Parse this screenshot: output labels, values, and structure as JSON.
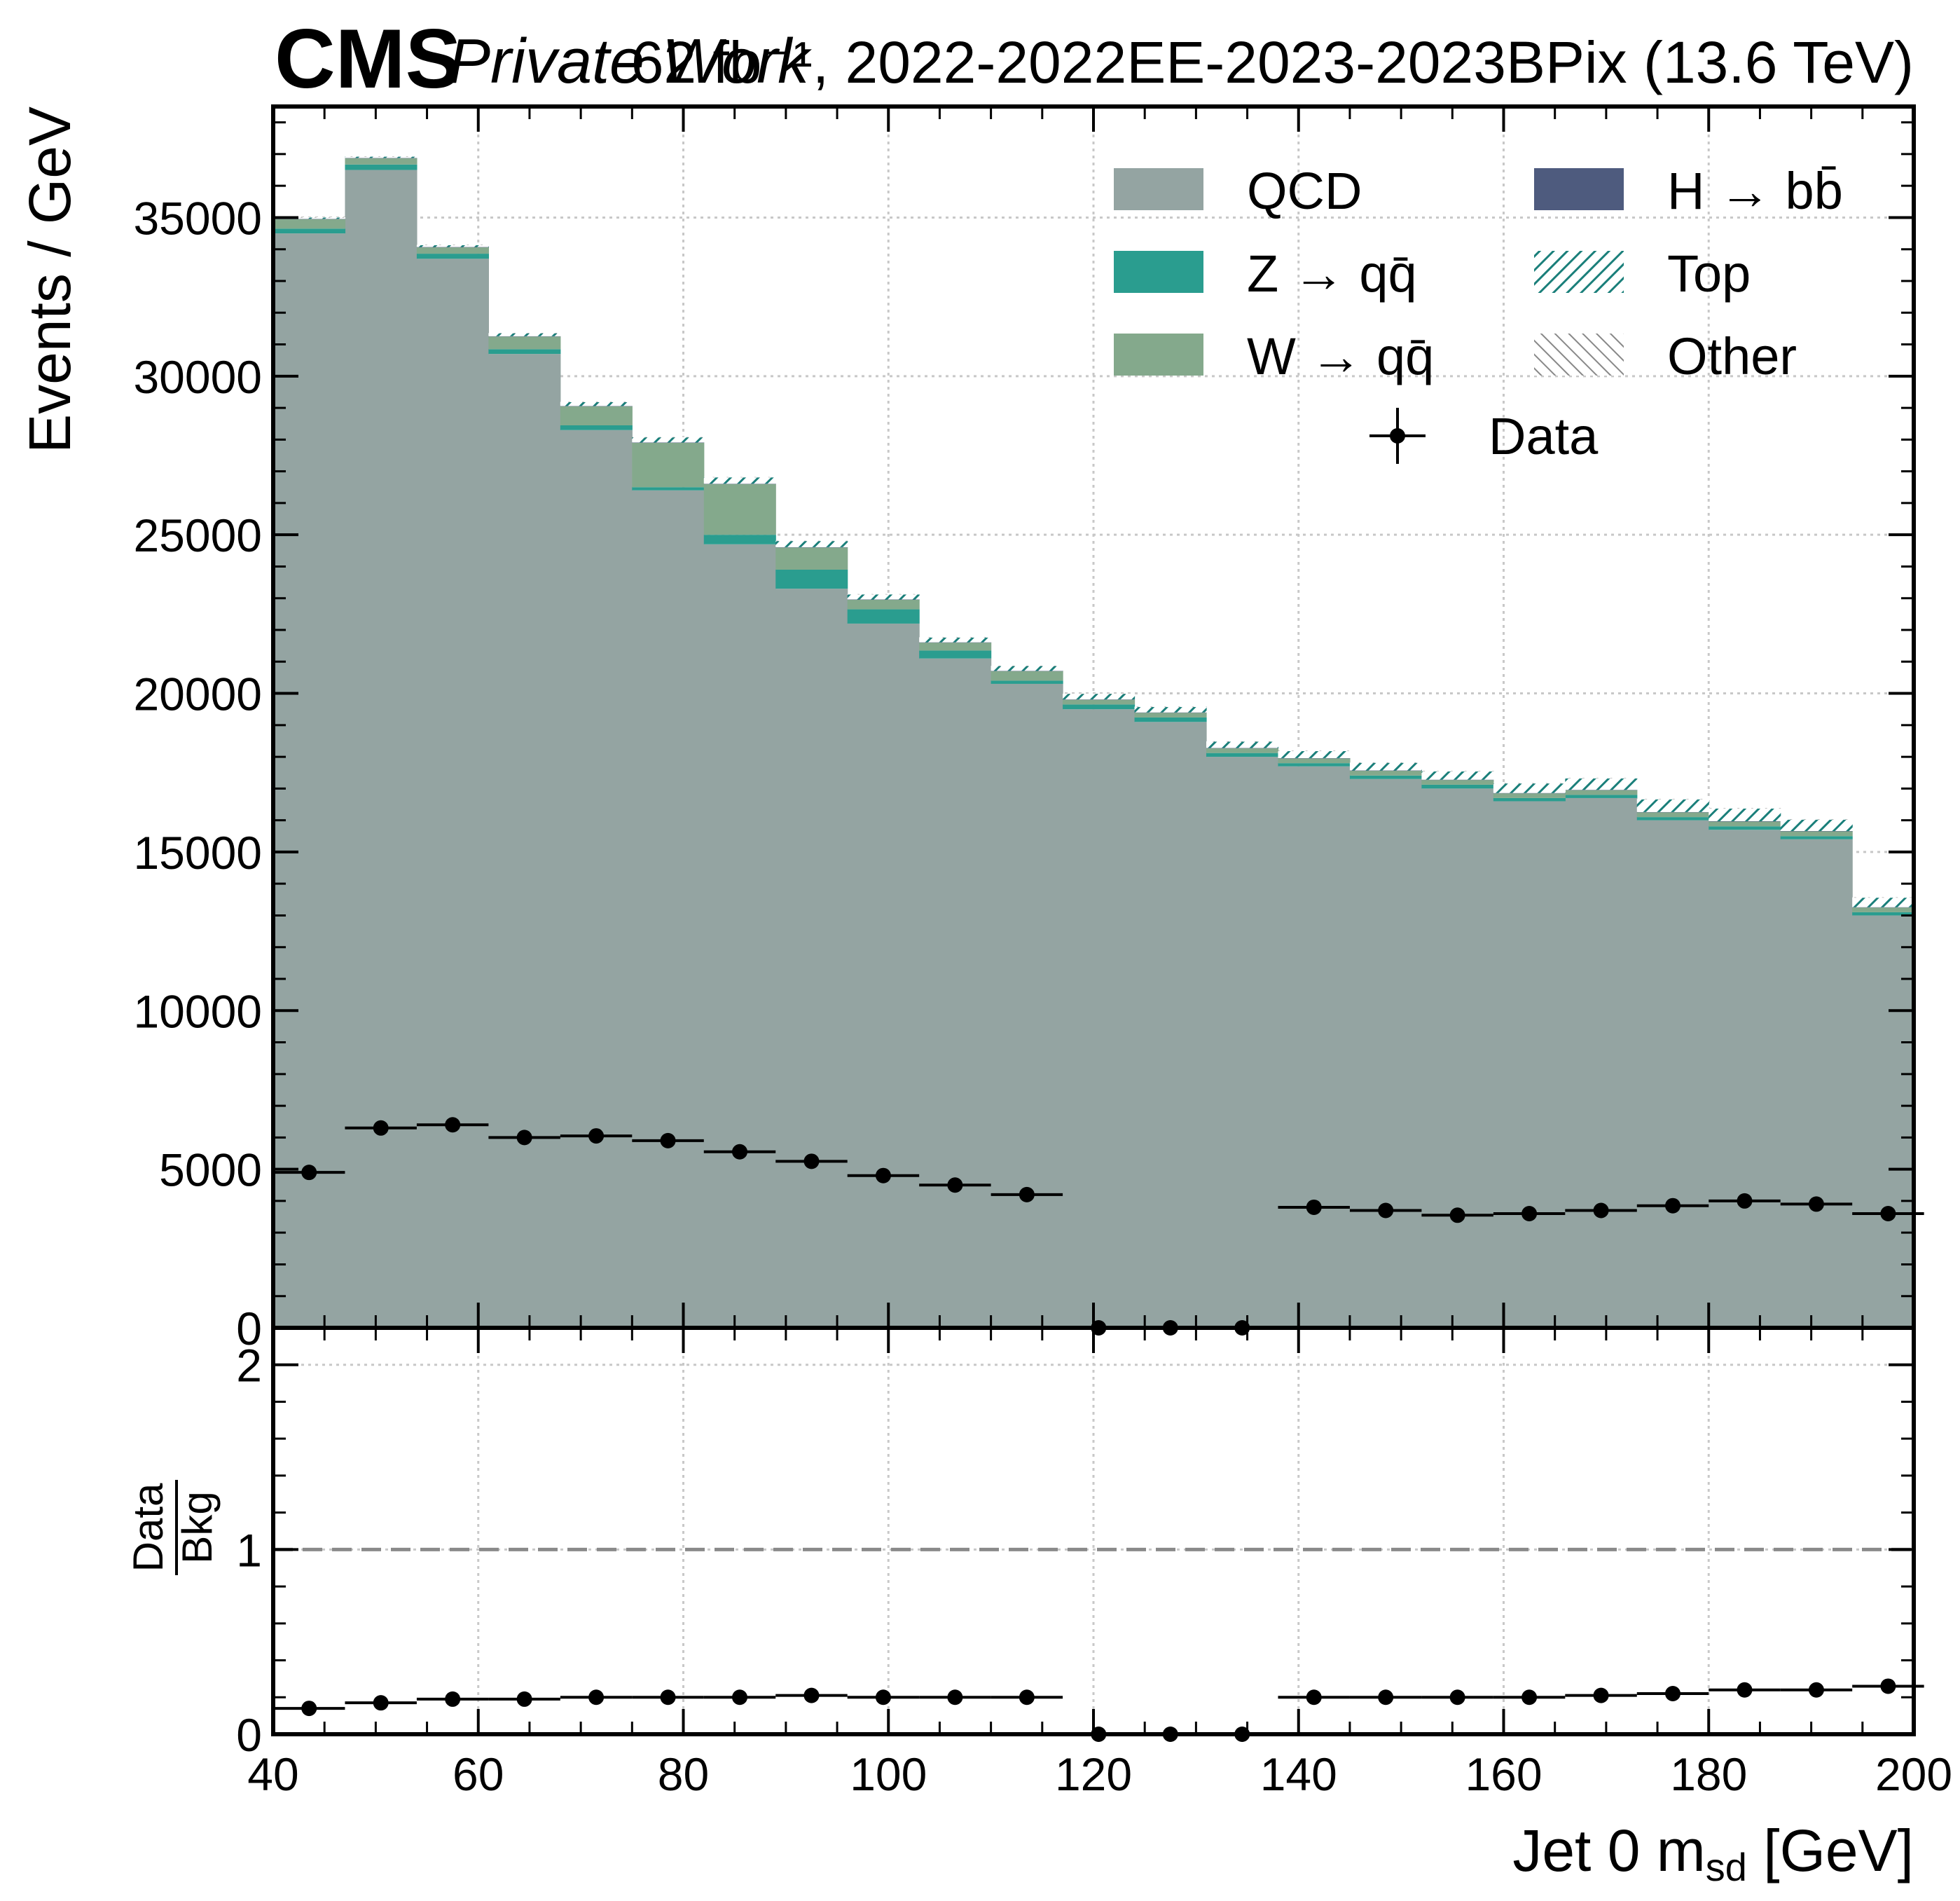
{
  "header": {
    "experiment": "CMS",
    "status": "Private Work",
    "lumi_text": "62 fb⁻¹, 2022-2022EE-2023-2023BPix (13.6 TeV)"
  },
  "colors": {
    "qcd": "#94a4a2",
    "zqq": "#2a9d8f",
    "wqq": "#84a98c",
    "hbb": "#4e5b7e",
    "top": "#1a7f7a",
    "other": "#888888",
    "data": "#000000",
    "ratio_line": "#8a8a8a"
  },
  "chart_data": [
    {
      "type": "bar",
      "subtype": "stacked-histogram",
      "ylabel": "Events / GeV",
      "xlim": [
        40,
        200
      ],
      "ylim": [
        0,
        38500
      ],
      "yticks": [
        0,
        5000,
        10000,
        15000,
        20000,
        25000,
        30000,
        35000
      ],
      "grid": true,
      "legend_position": "top-right",
      "bin_edges": [
        40,
        47,
        54,
        61,
        68,
        75,
        82,
        89,
        96,
        103,
        110,
        117,
        124,
        131,
        138,
        145,
        152,
        159,
        166,
        173,
        180,
        187,
        194,
        201
      ],
      "series": [
        {
          "name": "QCD",
          "color_key": "qcd",
          "values": [
            34500,
            36500,
            33700,
            30700,
            28300,
            26400,
            24700,
            23300,
            22200,
            21100,
            20300,
            19500,
            19100,
            18000,
            17700,
            17300,
            17000,
            16600,
            16700,
            16000,
            15700,
            15400,
            13000
          ]
        },
        {
          "name": "Z → qq̄",
          "color_key": "zqq",
          "values": [
            150,
            170,
            160,
            150,
            150,
            100,
            300,
            600,
            450,
            250,
            100,
            150,
            140,
            120,
            100,
            110,
            120,
            100,
            100,
            100,
            110,
            100,
            100
          ]
        },
        {
          "name": "W → qq̄",
          "color_key": "wqq",
          "values": [
            300,
            200,
            200,
            400,
            600,
            1400,
            1600,
            700,
            300,
            250,
            300,
            150,
            150,
            150,
            150,
            150,
            150,
            150,
            150,
            150,
            150,
            150,
            150
          ]
        },
        {
          "name": "H → bb̄",
          "color_key": "hbb",
          "values": [
            10,
            10,
            10,
            10,
            10,
            10,
            10,
            10,
            10,
            10,
            10,
            10,
            10,
            10,
            10,
            10,
            10,
            10,
            10,
            10,
            10,
            10,
            10
          ]
        },
        {
          "name": "Top",
          "color_key": "top",
          "values": [
            40,
            40,
            60,
            90,
            120,
            160,
            200,
            190,
            160,
            150,
            150,
            170,
            170,
            200,
            220,
            240,
            260,
            300,
            360,
            400,
            400,
            360,
            300
          ]
        },
        {
          "name": "Other",
          "color_key": "other",
          "values": [
            10,
            10,
            10,
            10,
            10,
            10,
            10,
            10,
            10,
            10,
            10,
            10,
            10,
            10,
            10,
            10,
            10,
            10,
            10,
            10,
            10,
            10,
            10
          ]
        }
      ],
      "data": {
        "name": "Data",
        "values": [
          4900,
          6300,
          6400,
          6000,
          6050,
          5900,
          5550,
          5250,
          4800,
          4500,
          4200,
          0,
          0,
          0,
          3800,
          3700,
          3550,
          3600,
          3700,
          3850,
          4000,
          3900,
          3600
        ]
      }
    },
    {
      "type": "scatter",
      "subtype": "ratio",
      "xlabel": "Jet 0 m_sd [GeV]",
      "ylabel_num": "Data",
      "ylabel_den": "Bkg",
      "xlim": [
        40,
        200
      ],
      "ylim": [
        0,
        2.2
      ],
      "yticks": [
        0,
        1,
        2
      ],
      "xticks": [
        40,
        60,
        80,
        100,
        120,
        140,
        160,
        180,
        200
      ],
      "reference_line": 1,
      "grid": true,
      "bin_edges": [
        40,
        47,
        54,
        61,
        68,
        75,
        82,
        89,
        96,
        103,
        110,
        117,
        124,
        131,
        138,
        145,
        152,
        159,
        166,
        173,
        180,
        187,
        194,
        201
      ],
      "values": [
        0.14,
        0.17,
        0.19,
        0.19,
        0.2,
        0.2,
        0.2,
        0.21,
        0.2,
        0.2,
        0.2,
        0,
        0,
        0,
        0.2,
        0.2,
        0.2,
        0.2,
        0.21,
        0.22,
        0.24,
        0.24,
        0.26
      ]
    }
  ]
}
